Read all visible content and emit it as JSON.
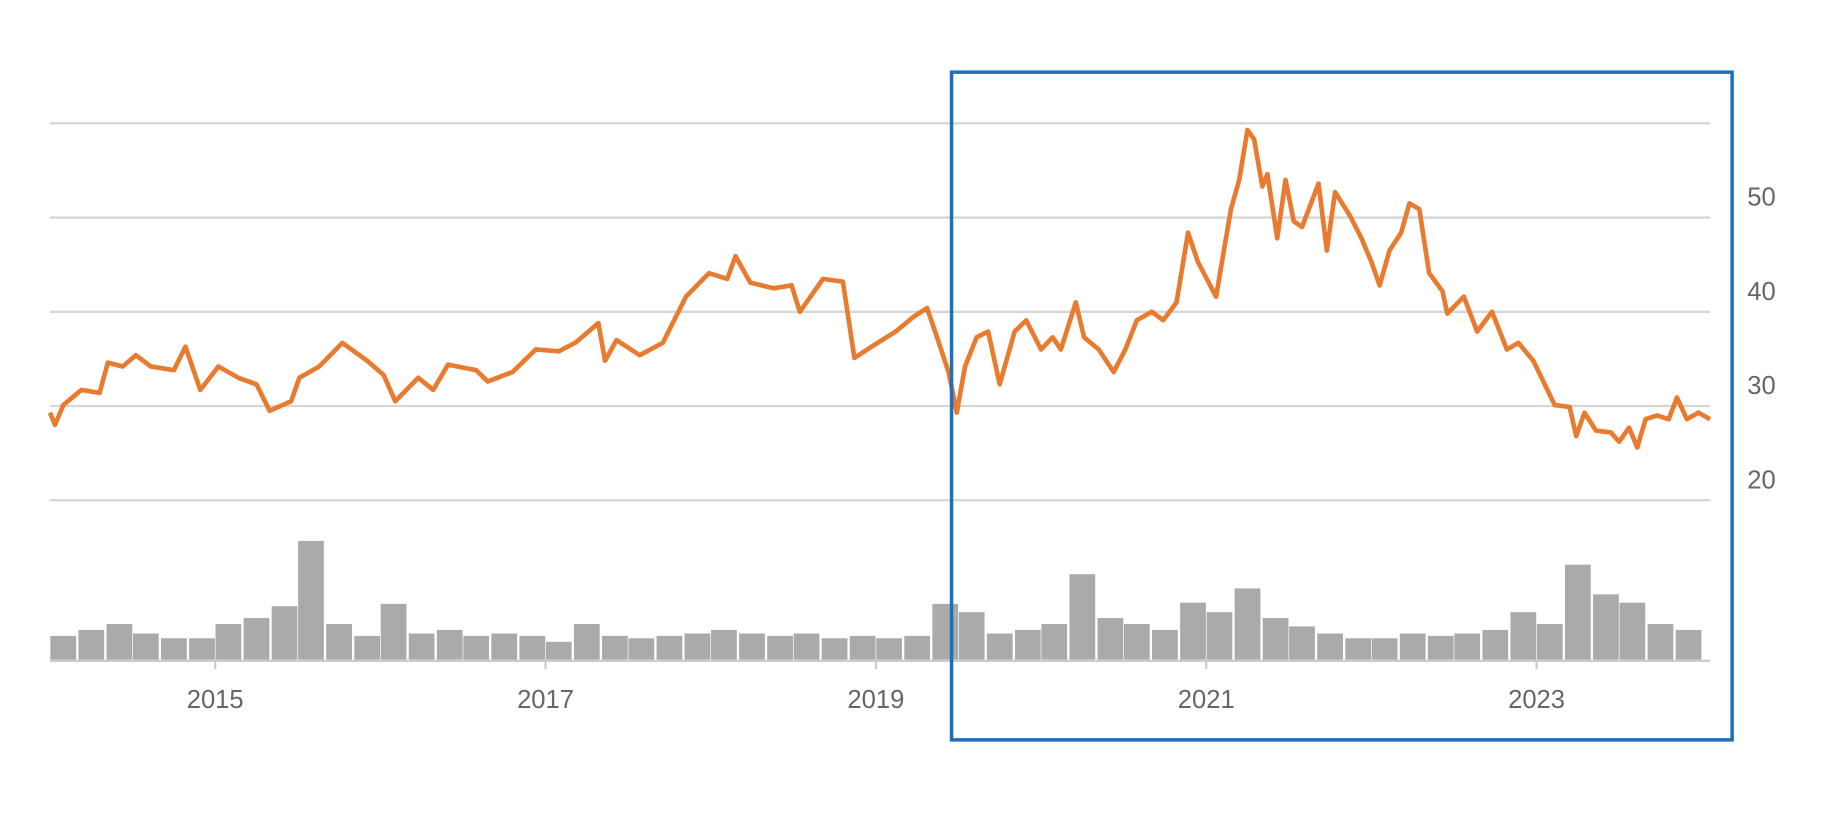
{
  "chart_data": {
    "type": "line",
    "color": "#e87b2f",
    "xlim": [
      2014,
      2024.05
    ],
    "xticks": [
      2015,
      2017,
      2019,
      2021,
      2023
    ],
    "ylim": [
      20,
      60
    ],
    "yticks": [
      20,
      30,
      40,
      50
    ],
    "ygrid": [
      20,
      30,
      40,
      50,
      60
    ],
    "grid": true,
    "x": [
      2014.0,
      2014.03,
      2014.08,
      2014.19,
      2014.3,
      2014.35,
      2014.44,
      2014.52,
      2014.61,
      2014.75,
      2014.82,
      2014.91,
      2015.02,
      2015.14,
      2015.25,
      2015.33,
      2015.46,
      2015.51,
      2015.63,
      2015.77,
      2015.92,
      2016.02,
      2016.09,
      2016.23,
      2016.32,
      2016.41,
      2016.58,
      2016.65,
      2016.8,
      2016.94,
      2017.08,
      2017.18,
      2017.32,
      2017.36,
      2017.43,
      2017.57,
      2017.71,
      2017.85,
      2017.99,
      2018.1,
      2018.15,
      2018.24,
      2018.38,
      2018.49,
      2018.54,
      2018.68,
      2018.8,
      2018.87,
      2019.01,
      2019.12,
      2019.23,
      2019.31,
      2019.37,
      2019.44,
      2019.49,
      2019.54,
      2019.61,
      2019.68,
      2019.75,
      2019.84,
      2019.91,
      2020.0,
      2020.07,
      2020.12,
      2020.21,
      2020.26,
      2020.35,
      2020.44,
      2020.51,
      2020.58,
      2020.67,
      2020.74,
      2020.82,
      2020.89,
      2020.95,
      2021.06,
      2021.15,
      2021.2,
      2021.25,
      2021.29,
      2021.34,
      2021.37,
      2021.43,
      2021.48,
      2021.53,
      2021.58,
      2021.68,
      2021.73,
      2021.78,
      2021.87,
      2021.94,
      2022.0,
      2022.05,
      2022.11,
      2022.18,
      2022.23,
      2022.29,
      2022.35,
      2022.43,
      2022.46,
      2022.56,
      2022.64,
      2022.73,
      2022.82,
      2022.89,
      2022.98,
      2023.03,
      2023.11,
      2023.2,
      2023.24,
      2023.29,
      2023.36,
      2023.45,
      2023.5,
      2023.56,
      2023.61,
      2023.66,
      2023.73,
      2023.8,
      2023.85,
      2023.91,
      2023.98,
      2024.05
    ],
    "values": [
      29.3,
      28.0,
      30.1,
      31.7,
      31.4,
      34.6,
      34.2,
      35.4,
      34.2,
      33.8,
      36.3,
      31.7,
      34.2,
      33.0,
      32.3,
      29.5,
      30.5,
      33.0,
      34.2,
      36.7,
      34.8,
      33.3,
      30.5,
      33.0,
      31.7,
      34.4,
      33.8,
      32.6,
      33.6,
      36.0,
      35.8,
      36.7,
      38.8,
      34.8,
      37.0,
      35.4,
      36.7,
      41.6,
      44.1,
      43.5,
      45.9,
      43.1,
      42.5,
      42.8,
      40.0,
      43.5,
      43.2,
      35.1,
      36.7,
      37.9,
      39.5,
      40.4,
      37.3,
      33.6,
      29.3,
      34.2,
      37.3,
      37.9,
      32.3,
      37.9,
      39.1,
      36.0,
      37.3,
      36.0,
      41.0,
      37.3,
      36.0,
      33.6,
      36.0,
      39.1,
      40.0,
      39.1,
      41.0,
      48.4,
      45.3,
      41.6,
      50.9,
      54.0,
      59.3,
      58.3,
      53.3,
      54.6,
      47.8,
      54.0,
      49.6,
      49.0,
      53.6,
      46.5,
      52.7,
      50.2,
      47.8,
      45.3,
      42.8,
      46.5,
      48.4,
      51.5,
      50.9,
      44.1,
      42.2,
      39.8,
      41.6,
      37.9,
      40.0,
      36.0,
      36.7,
      34.8,
      33.0,
      30.1,
      29.9,
      26.8,
      29.3,
      27.4,
      27.2,
      26.2,
      27.7,
      25.6,
      28.6,
      29.0,
      28.6,
      30.9,
      28.6,
      29.3,
      28.6
    ],
    "volume": {
      "color": "#aaaaaa",
      "ylim": [
        0,
        100
      ],
      "x": [
        2014.08,
        2014.25,
        2014.42,
        2014.58,
        2014.75,
        2014.92,
        2015.08,
        2015.25,
        2015.42,
        2015.58,
        2015.75,
        2015.92,
        2016.08,
        2016.25,
        2016.42,
        2016.58,
        2016.75,
        2016.92,
        2017.08,
        2017.25,
        2017.42,
        2017.58,
        2017.75,
        2017.92,
        2018.08,
        2018.25,
        2018.42,
        2018.58,
        2018.75,
        2018.92,
        2019.08,
        2019.25,
        2019.42,
        2019.58,
        2019.75,
        2019.92,
        2020.08,
        2020.25,
        2020.42,
        2020.58,
        2020.75,
        2020.92,
        2021.08,
        2021.25,
        2021.42,
        2021.58,
        2021.75,
        2021.92,
        2022.08,
        2022.25,
        2022.42,
        2022.58,
        2022.75,
        2022.92,
        2023.08,
        2023.25,
        2023.42,
        2023.58,
        2023.75,
        2023.92
      ],
      "values": [
        20,
        25,
        30,
        22,
        18,
        18,
        30,
        35,
        45,
        100,
        30,
        20,
        47,
        22,
        25,
        20,
        22,
        20,
        15,
        30,
        20,
        18,
        20,
        22,
        25,
        22,
        20,
        22,
        18,
        20,
        18,
        20,
        47,
        40,
        22,
        25,
        30,
        72,
        35,
        30,
        25,
        48,
        40,
        60,
        35,
        28,
        22,
        18,
        18,
        22,
        20,
        22,
        25,
        40,
        30,
        80,
        55,
        48,
        30,
        25
      ]
    }
  }
}
